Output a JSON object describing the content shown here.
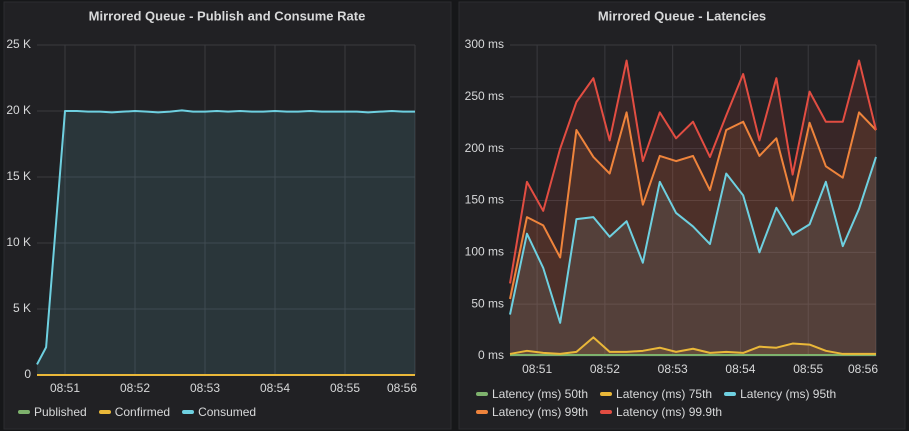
{
  "chart_data": [
    {
      "type": "line",
      "title": "Mirrored Queue - Publish and Consume Rate",
      "x": [
        50.6,
        50.73,
        51.0,
        51.17,
        51.33,
        51.5,
        51.67,
        51.83,
        52.0,
        52.17,
        52.33,
        52.5,
        52.67,
        52.83,
        53.0,
        53.17,
        53.33,
        53.5,
        53.67,
        53.83,
        54.0,
        54.17,
        54.33,
        54.5,
        54.67,
        54.83,
        55.0,
        55.17,
        55.33,
        55.5,
        55.67,
        55.83,
        56.0
      ],
      "series": [
        {
          "name": "Published",
          "color": "#7eb26d",
          "values": [
            0,
            0,
            0,
            0,
            0,
            0,
            0,
            0,
            0,
            0,
            0,
            0,
            0,
            0,
            0,
            0,
            0,
            0,
            0,
            0,
            0,
            0,
            0,
            0,
            0,
            0,
            0,
            0,
            0,
            0,
            0,
            0,
            0
          ]
        },
        {
          "name": "Confirmed",
          "color": "#eab839",
          "values": [
            0,
            0,
            0,
            0,
            0,
            0,
            0,
            0,
            0,
            0,
            0,
            0,
            0,
            0,
            0,
            0,
            0,
            0,
            0,
            0,
            0,
            0,
            0,
            0,
            0,
            0,
            0,
            0,
            0,
            0,
            0,
            0,
            0
          ]
        },
        {
          "name": "Consumed",
          "color": "#6ed0e0",
          "values": [
            800,
            2100,
            20000,
            20000,
            19950,
            19950,
            19900,
            19950,
            20000,
            19950,
            19900,
            19950,
            20050,
            19950,
            19950,
            20000,
            19950,
            20000,
            19950,
            19950,
            20000,
            19950,
            19950,
            20000,
            19950,
            19950,
            19950,
            19950,
            19900,
            19950,
            20000,
            19950,
            19950
          ]
        }
      ],
      "xlim": [
        50.6,
        56.0
      ],
      "xticks": [
        {
          "value": 51,
          "label": "08:51"
        },
        {
          "value": 52,
          "label": "08:52"
        },
        {
          "value": 53,
          "label": "08:53"
        },
        {
          "value": 54,
          "label": "08:54"
        },
        {
          "value": 55,
          "label": "08:55"
        },
        {
          "value": 56,
          "label": "08:56"
        }
      ],
      "ylim": [
        0,
        25000
      ],
      "yticks": [
        0,
        {
          "value": 5000,
          "label": "5 K"
        },
        {
          "value": 10000,
          "label": "10 K"
        },
        {
          "value": 15000,
          "label": "15 K"
        },
        {
          "value": 20000,
          "label": "20 K"
        },
        {
          "value": 25000,
          "label": "25 K"
        }
      ],
      "grid": true
    },
    {
      "type": "line",
      "title": "Mirrored Queue - Latencies",
      "x": [
        50.6,
        50.85,
        51.09,
        51.34,
        51.58,
        51.83,
        52.07,
        52.32,
        52.56,
        52.81,
        53.05,
        53.3,
        53.55,
        53.79,
        54.04,
        54.28,
        54.53,
        54.77,
        55.02,
        55.26,
        55.51,
        55.75,
        56.0
      ],
      "series": [
        {
          "name": "Latency (ms) 50th",
          "color": "#7eb26d",
          "values": [
            1,
            1,
            1,
            1,
            1,
            1,
            1,
            1,
            1,
            1,
            1,
            1,
            1,
            1,
            1,
            1,
            1,
            1,
            1,
            1,
            1,
            1,
            1
          ]
        },
        {
          "name": "Latency (ms) 75th",
          "color": "#eab839",
          "values": [
            2,
            5,
            3,
            2,
            4,
            18,
            4,
            4,
            5,
            8,
            4,
            7,
            3,
            4,
            3,
            9,
            8,
            12,
            11,
            5,
            2,
            2,
            2
          ]
        },
        {
          "name": "Latency (ms) 95th",
          "color": "#6ed0e0",
          "values": [
            40,
            118,
            85,
            32,
            132,
            134,
            115,
            130,
            90,
            168,
            138,
            125,
            108,
            176,
            155,
            100,
            143,
            117,
            127,
            168,
            106,
            142,
            192
          ]
        },
        {
          "name": "Latency (ms) 99th",
          "color": "#ef843c",
          "values": [
            55,
            134,
            126,
            95,
            218,
            192,
            176,
            235,
            146,
            193,
            188,
            193,
            160,
            218,
            226,
            193,
            210,
            150,
            225,
            183,
            172,
            235,
            218
          ]
        },
        {
          "name": "Latency (ms) 99.9th",
          "color": "#e24d42",
          "values": [
            70,
            168,
            140,
            200,
            245,
            268,
            208,
            285,
            188,
            235,
            210,
            226,
            192,
            232,
            272,
            208,
            268,
            175,
            255,
            226,
            226,
            285,
            218
          ]
        }
      ],
      "xlim": [
        50.6,
        56.0
      ],
      "xticks": [
        {
          "value": 51,
          "label": "08:51"
        },
        {
          "value": 52,
          "label": "08:52"
        },
        {
          "value": 53,
          "label": "08:53"
        },
        {
          "value": 54,
          "label": "08:54"
        },
        {
          "value": 55,
          "label": "08:55"
        },
        {
          "value": 56,
          "label": "08:56"
        }
      ],
      "ylim": [
        0,
        300
      ],
      "yticks": [
        {
          "value": 0,
          "label": "0 ms"
        },
        {
          "value": 50,
          "label": "50 ms"
        },
        {
          "value": 100,
          "label": "100 ms"
        },
        {
          "value": 150,
          "label": "150 ms"
        },
        {
          "value": 200,
          "label": "200 ms"
        },
        {
          "value": 250,
          "label": "250 ms"
        },
        {
          "value": 300,
          "label": "300 ms"
        }
      ],
      "grid": true
    }
  ]
}
